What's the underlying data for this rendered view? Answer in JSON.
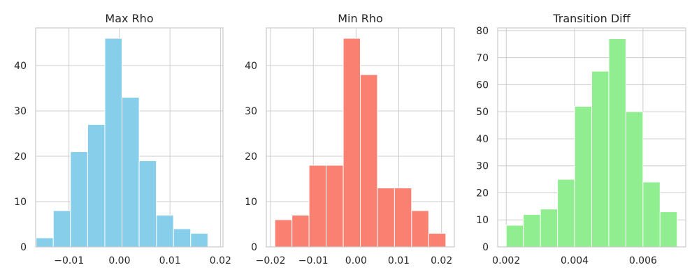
{
  "chart_data": [
    {
      "type": "bar",
      "title": "Max Rho",
      "color": "#87ceeb",
      "bin_edges": [
        -0.0165,
        -0.0131,
        -0.0097,
        -0.0063,
        -0.0029,
        0.0005,
        0.0039,
        0.0073,
        0.0107,
        0.0141,
        0.0175
      ],
      "values": [
        2,
        8,
        21,
        27,
        46,
        33,
        19,
        7,
        4,
        3
      ],
      "xlim": [
        -0.0166,
        0.0205
      ],
      "ylim": [
        0,
        48.3
      ],
      "xticks": [
        -0.01,
        0.0,
        0.01,
        0.02
      ],
      "xtick_labels": [
        "−0.01",
        "0.00",
        "0.01",
        "0.02"
      ],
      "yticks": [
        0,
        10,
        20,
        30,
        40
      ],
      "ytick_labels": [
        "0",
        "10",
        "20",
        "30",
        "40"
      ]
    },
    {
      "type": "bar",
      "title": "Min Rho",
      "color": "#fa8072",
      "bin_edges": [
        -0.019,
        -0.015,
        -0.011,
        -0.007,
        -0.003,
        0.001,
        0.005,
        0.009,
        0.013,
        0.017,
        0.021
      ],
      "values": [
        6,
        7,
        18,
        18,
        46,
        38,
        13,
        13,
        8,
        3
      ],
      "xlim": [
        -0.021,
        0.023
      ],
      "ylim": [
        0,
        48.3
      ],
      "xticks": [
        -0.02,
        -0.01,
        0.0,
        0.01,
        0.02
      ],
      "xtick_labels": [
        "−0.02",
        "−0.01",
        "0.00",
        "0.01",
        "0.02"
      ],
      "yticks": [
        0,
        10,
        20,
        30,
        40
      ],
      "ytick_labels": [
        "0",
        "10",
        "20",
        "30",
        "40"
      ]
    },
    {
      "type": "bar",
      "title": "Transition Diff",
      "color": "#90ee90",
      "bin_edges": [
        0.002,
        0.0025,
        0.003,
        0.0035,
        0.004,
        0.0045,
        0.005,
        0.0055,
        0.006,
        0.0065,
        0.007
      ],
      "values": [
        8,
        12,
        14,
        25,
        52,
        65,
        77,
        50,
        24,
        13
      ],
      "xlim": [
        0.00175,
        0.00725
      ],
      "ylim": [
        0,
        81
      ],
      "xticks": [
        0.002,
        0.004,
        0.006
      ],
      "xtick_labels": [
        "0.002",
        "0.004",
        "0.006"
      ],
      "yticks": [
        0,
        10,
        20,
        30,
        40,
        50,
        60,
        70,
        80
      ],
      "ytick_labels": [
        "0",
        "10",
        "20",
        "30",
        "40",
        "50",
        "60",
        "70",
        "80"
      ]
    }
  ],
  "style": {
    "grid_color": "#cccccc",
    "spine_color": "#cccccc",
    "text_color": "#262626",
    "bar_edge_color": "#ffffff"
  }
}
